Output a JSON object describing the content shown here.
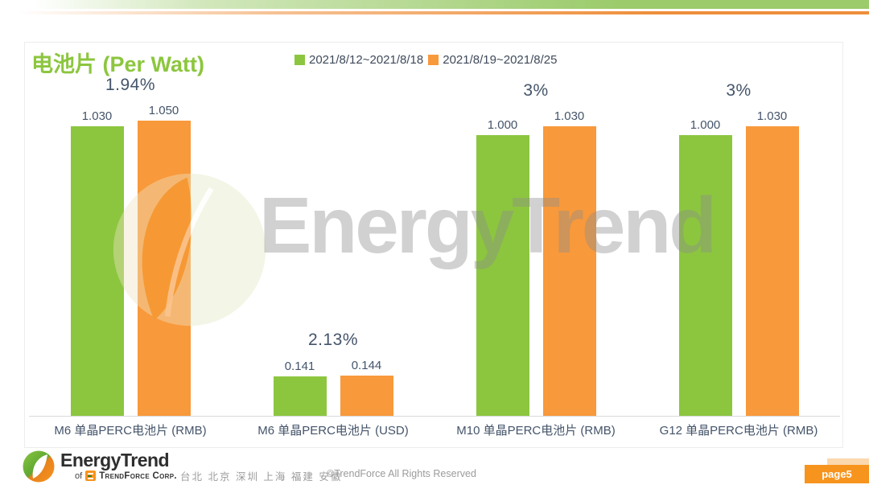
{
  "header": {
    "title": "电池片 (Per Watt)"
  },
  "legend": {
    "items": [
      {
        "label": "2021/8/12~2021/8/18",
        "color": "#8CC63F"
      },
      {
        "label": "2021/8/19~2021/8/25",
        "color": "#F8993B"
      }
    ]
  },
  "chart_data": {
    "type": "bar",
    "title": "电池片 (Per Watt)",
    "categories": [
      "M6 单晶PERC电池片 (RMB)",
      "M6 单晶PERC电池片 (USD)",
      "M10 单晶PERC电池片 (RMB)",
      "G12 单晶PERC电池片 (RMB)"
    ],
    "series": [
      {
        "name": "2021/8/12~2021/8/18",
        "color": "#8CC63F",
        "values": [
          1.03,
          0.141,
          1.0,
          1.0
        ],
        "labels": [
          "1.030",
          "0.141",
          "1.000",
          "1.000"
        ]
      },
      {
        "name": "2021/8/19~2021/8/25",
        "color": "#F8993B",
        "values": [
          1.05,
          0.144,
          1.03,
          1.03
        ],
        "labels": [
          "1.050",
          "0.144",
          "1.030",
          "1.030"
        ]
      }
    ],
    "change_labels": [
      "1.94%",
      "2.13%",
      "3%",
      "3%"
    ],
    "ylim": [
      0,
      1.2
    ],
    "grid": false,
    "legend_position": "top",
    "label_color": "#44546A"
  },
  "watermark": {
    "text": "EnergyTrend"
  },
  "footer": {
    "brand": "EnergyTrend",
    "sub_prefix": "of",
    "sub_name": "TrendForce Corp.",
    "locations": "台北 北京 深圳 上海 福建 安徽",
    "copyright": "©TrendForce All Rights Reserved",
    "page_badge": "page5"
  }
}
